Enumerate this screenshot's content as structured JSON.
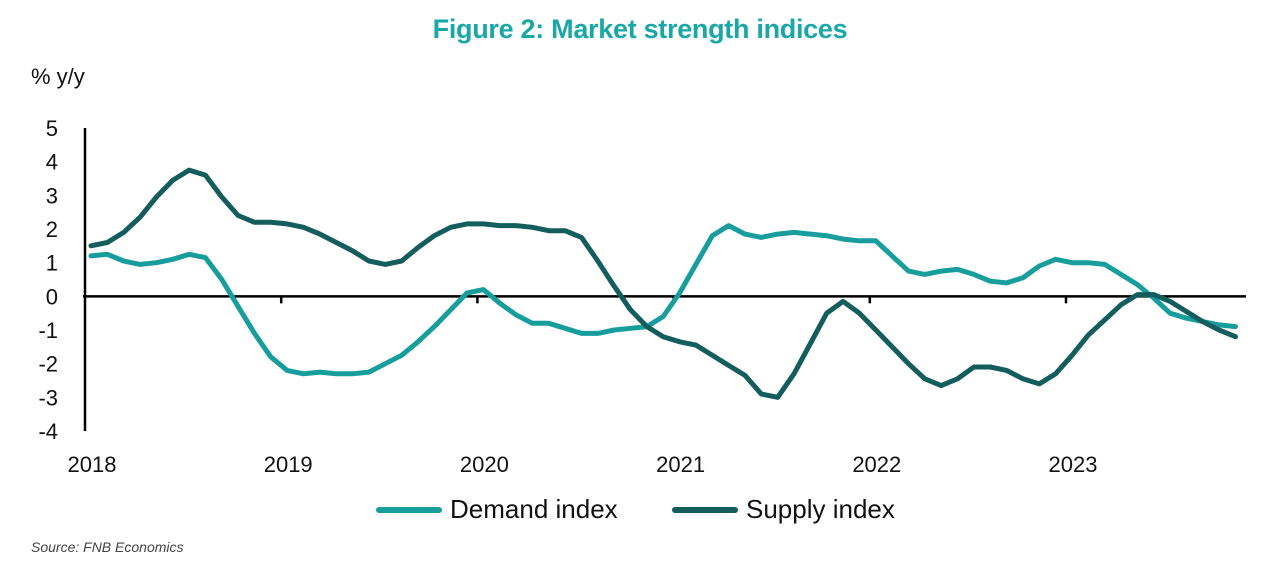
{
  "chart_data": {
    "type": "line",
    "title": "Figure 2: Market strength indices",
    "ylabel": "% y/y",
    "xlabel": "",
    "ylim": [
      -4,
      5
    ],
    "yticks": [
      "5",
      "4",
      "3",
      "2",
      "1",
      "0",
      "-1",
      "-2",
      "-3",
      "-4"
    ],
    "ytick_values": [
      5,
      4,
      3,
      2,
      1,
      0,
      -1,
      -2,
      -3,
      -4
    ],
    "xticks": [
      "2018",
      "2019",
      "2020",
      "2021",
      "2022",
      "2023"
    ],
    "x_start": "2018-01",
    "x_frequency": "monthly",
    "grid": false,
    "legend_position": "bottom",
    "series": [
      {
        "name": "Demand index",
        "color": "#179e9c",
        "values": [
          1.2,
          1.25,
          1.05,
          0.95,
          1.0,
          1.1,
          1.25,
          1.15,
          0.5,
          -0.3,
          -1.1,
          -1.8,
          -2.2,
          -2.3,
          -2.25,
          -2.3,
          -2.3,
          -2.25,
          -2.0,
          -1.75,
          -1.35,
          -0.9,
          -0.4,
          0.1,
          0.2,
          -0.2,
          -0.55,
          -0.8,
          -0.8,
          -0.95,
          -1.1,
          -1.1,
          -1.0,
          -0.95,
          -0.9,
          -0.6,
          0.1,
          0.95,
          1.8,
          2.1,
          1.85,
          1.75,
          1.85,
          1.9,
          1.85,
          1.8,
          1.7,
          1.65,
          1.65,
          1.2,
          0.75,
          0.65,
          0.75,
          0.8,
          0.65,
          0.45,
          0.4,
          0.55,
          0.9,
          1.1,
          1.0,
          1.0,
          0.95,
          0.65,
          0.35,
          -0.05,
          -0.5,
          -0.65,
          -0.75,
          -0.85,
          -0.9
        ]
      },
      {
        "name": "Supply index",
        "color": "#135e5c",
        "values": [
          1.5,
          1.6,
          1.9,
          2.35,
          2.95,
          3.45,
          3.75,
          3.6,
          2.95,
          2.4,
          2.2,
          2.2,
          2.15,
          2.05,
          1.85,
          1.6,
          1.35,
          1.05,
          0.95,
          1.05,
          1.45,
          1.8,
          2.05,
          2.15,
          2.15,
          2.1,
          2.1,
          2.05,
          1.95,
          1.95,
          1.75,
          1.05,
          0.3,
          -0.4,
          -0.9,
          -1.2,
          -1.35,
          -1.45,
          -1.75,
          -2.05,
          -2.35,
          -2.9,
          -3.0,
          -2.3,
          -1.4,
          -0.5,
          -0.15,
          -0.5,
          -1.0,
          -1.5,
          -2.0,
          -2.45,
          -2.65,
          -2.45,
          -2.1,
          -2.1,
          -2.2,
          -2.45,
          -2.6,
          -2.3,
          -1.75,
          -1.15,
          -0.7,
          -0.25,
          0.05,
          0.05,
          -0.15,
          -0.45,
          -0.75,
          -1.0,
          -1.2
        ]
      }
    ],
    "source": "Source: FNB Economics"
  }
}
